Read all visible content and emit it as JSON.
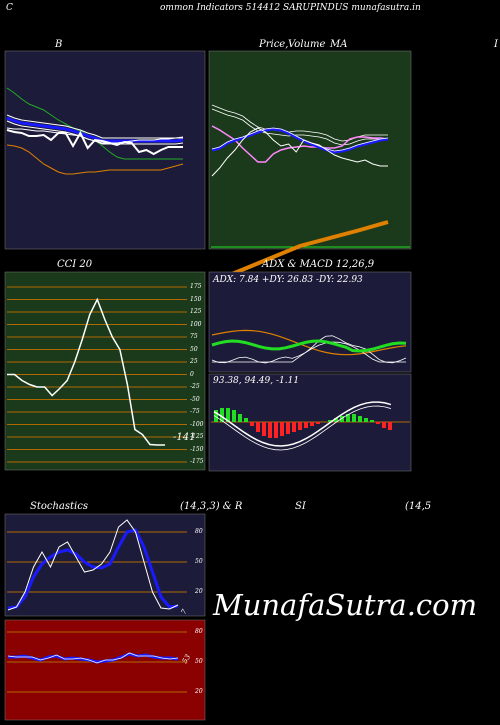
{
  "header": {
    "left_letter": "C",
    "title": "ommon  Indicators 514412  SARUPINDUS munafasutra.in"
  },
  "watermark": "MunafaSutra.com",
  "colors": {
    "navy": "#1c1c3a",
    "green_bg": "#1b3a1b",
    "red_bg": "#8b0000",
    "blue": "#1a1aff",
    "orange": "#e08000",
    "lime": "#22dd22",
    "grid_orange": "#b06a00"
  },
  "chart_data": [
    {
      "id": "bollinger",
      "type": "line",
      "title": "B",
      "series": [
        {
          "values": [
            88,
            93,
            99,
            104,
            107,
            110,
            115,
            120,
            124,
            128,
            131,
            135,
            140,
            146,
            152,
            157,
            159,
            159,
            159,
            159,
            159,
            159,
            159,
            159,
            159
          ]
        },
        {
          "values": [
            118,
            121,
            123,
            124,
            125,
            126,
            127,
            128,
            129,
            131,
            133,
            136,
            138,
            141,
            141,
            141,
            141,
            141,
            141,
            141,
            141,
            141,
            141,
            141,
            140
          ]
        },
        {
          "values": [
            128,
            129,
            129,
            130,
            131,
            131,
            132,
            133,
            134,
            135,
            136,
            139,
            141,
            143,
            143,
            143,
            142,
            141,
            140,
            140,
            140,
            139,
            139,
            138,
            138
          ]
        },
        {
          "values": [
            130,
            132,
            133,
            136,
            136,
            135,
            140,
            133,
            133,
            146,
            133,
            148,
            140,
            141,
            143,
            145,
            142,
            143,
            152,
            150,
            154,
            150,
            147,
            147,
            147
          ]
        },
        {
          "values": [
            145,
            146,
            148,
            152,
            158,
            164,
            168,
            172,
            174,
            174,
            173,
            172,
            172,
            171,
            170,
            170,
            170,
            170,
            170,
            170,
            170,
            170,
            168,
            166,
            164
          ]
        }
      ]
    },
    {
      "id": "price-ma",
      "type": "line",
      "title_parts": [
        "Price,",
        "Volume",
        "MA"
      ],
      "series": [
        {
          "values": [
            105,
            108,
            111,
            113,
            116,
            122,
            127,
            129,
            130,
            131,
            132,
            131,
            131,
            132,
            133,
            135,
            139,
            141,
            140,
            137,
            135,
            135,
            135,
            135
          ]
        },
        {
          "values": [
            126,
            130,
            135,
            140,
            148,
            155,
            162,
            162,
            154,
            150,
            148,
            147,
            146,
            147,
            147,
            148,
            148,
            146,
            139,
            137,
            137,
            138,
            138,
            139
          ]
        },
        {
          "values": [
            150,
            148,
            143,
            140,
            138,
            135,
            132,
            130,
            129,
            130,
            133,
            137,
            141,
            144,
            147,
            150,
            152,
            151,
            149,
            146,
            144,
            142,
            140,
            139
          ]
        },
        {
          "values": [
            176,
            168,
            158,
            150,
            140,
            132,
            128,
            132,
            140,
            146,
            144,
            152,
            140,
            143,
            145,
            150,
            155,
            158,
            160,
            162,
            160,
            164,
            166,
            166
          ]
        }
      ]
    },
    {
      "id": "cci",
      "type": "line",
      "title": "CCI 20",
      "yticks": [
        "175",
        "150",
        "125",
        "100",
        "75",
        "50",
        "25",
        "0",
        "-25",
        "-50",
        "-75",
        "-100",
        "-125",
        "-150",
        "-175"
      ],
      "last_value_label": "-141",
      "values": [
        0,
        0,
        -12,
        -20,
        -25,
        -25,
        -42,
        -28,
        -12,
        25,
        70,
        120,
        150,
        110,
        75,
        50,
        -20,
        -110,
        -120,
        -140,
        -141,
        -141
      ]
    },
    {
      "id": "adx-macd",
      "type": "line",
      "title": "ADX  & MACD 12,26,9",
      "adx_text": "ADX: 7.84  +DY: 26.83 -DY: 22.93",
      "macd_text": "93.38,  94.49,  -1.11",
      "histogram": [
        12,
        14,
        14,
        12,
        8,
        4,
        -4,
        -10,
        -14,
        -16,
        -16,
        -14,
        -12,
        -10,
        -8,
        -6,
        -4,
        -2,
        0,
        2,
        4,
        6,
        8,
        8,
        6,
        4,
        2,
        -2,
        -6,
        -8
      ]
    },
    {
      "id": "stochastics",
      "type": "line",
      "title_left": "Stochastics",
      "title_right": "(14,3,3) & R",
      "yticks": [
        "80",
        "50",
        "20"
      ],
      "last_value_label": "7",
      "k_values": [
        2,
        5,
        20,
        45,
        60,
        45,
        65,
        70,
        55,
        40,
        42,
        48,
        60,
        85,
        92,
        80,
        50,
        20,
        4,
        3,
        7
      ],
      "d_values": [
        4,
        5,
        15,
        35,
        48,
        55,
        60,
        62,
        58,
        50,
        45,
        44,
        48,
        65,
        80,
        82,
        65,
        40,
        15,
        5,
        6
      ]
    },
    {
      "id": "rsi",
      "type": "line",
      "title_left": "SI",
      "title_right": "(14,5",
      "yticks": [
        "80",
        "50",
        "20"
      ],
      "last_value_label": "53",
      "values": [
        55,
        55,
        56,
        54,
        52,
        55,
        56,
        53,
        54,
        53,
        52,
        50,
        51,
        52,
        55,
        58,
        56,
        57,
        55,
        54,
        54,
        53
      ]
    }
  ],
  "right_letter": "I"
}
